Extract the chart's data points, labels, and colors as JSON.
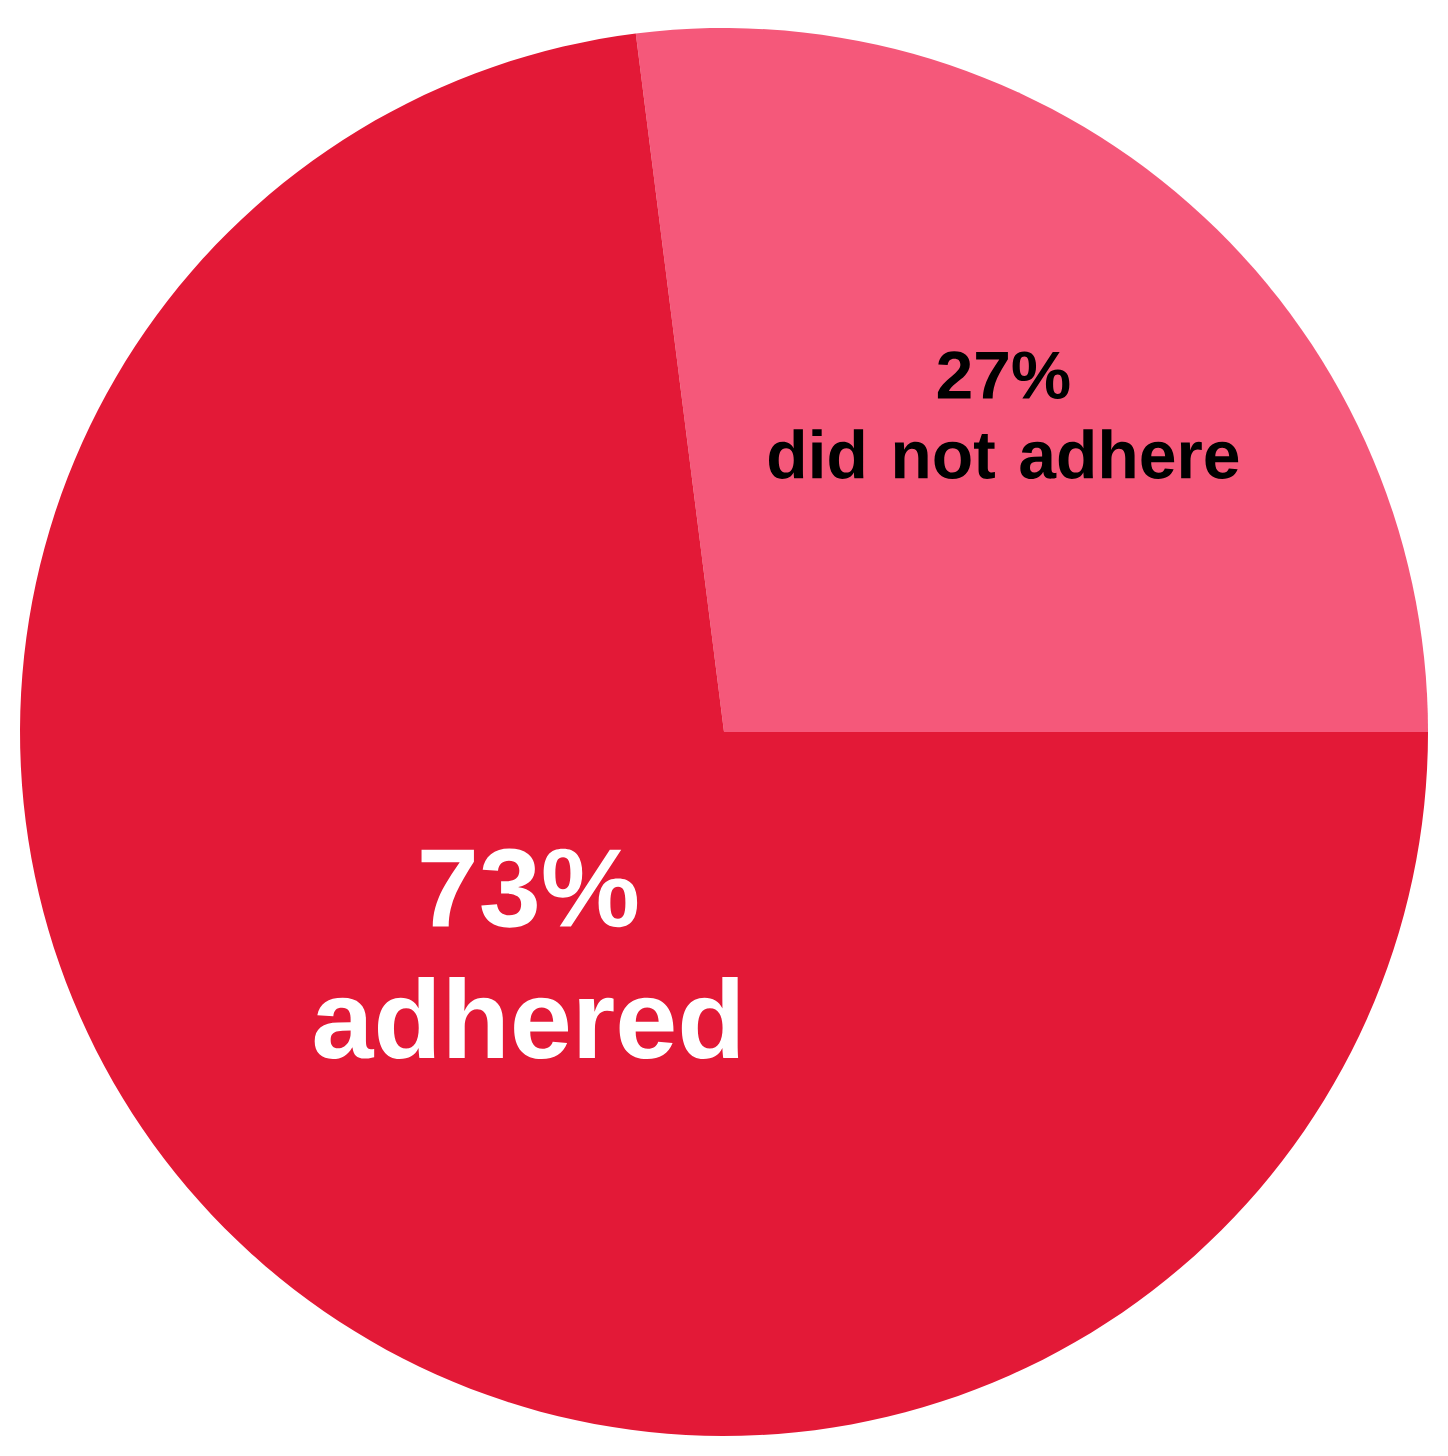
{
  "chart_data": {
    "type": "pie",
    "categories": [
      "did not adhere",
      "adhered"
    ],
    "values": [
      27,
      73
    ],
    "colors": [
      "#f5587a",
      "#e31937"
    ],
    "value_labels": [
      "27%",
      "73%"
    ]
  }
}
